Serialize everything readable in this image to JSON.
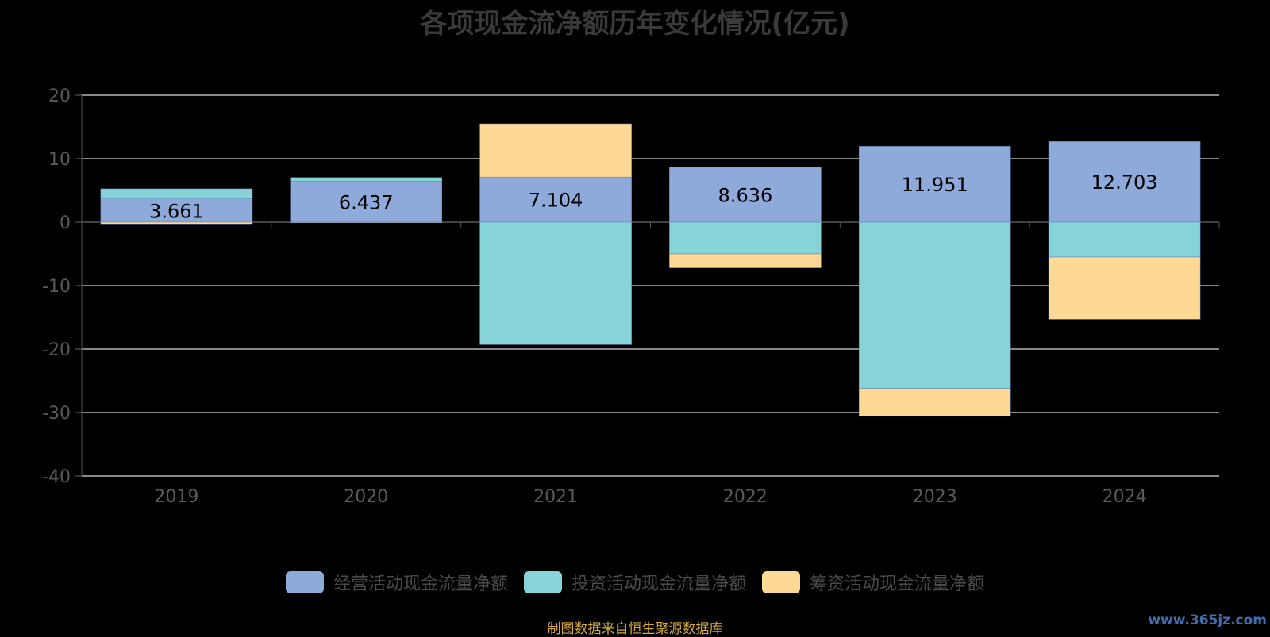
{
  "chart_data": {
    "type": "bar",
    "stacked": true,
    "title": "各项现金流净额历年变化情况(亿元)",
    "categories": [
      "2019",
      "2020",
      "2021",
      "2022",
      "2023",
      "2024"
    ],
    "ylim": [
      -40,
      20
    ],
    "yticks": [
      20,
      10,
      0,
      -10,
      -20,
      -30,
      -40
    ],
    "grid": true,
    "legend_position": "bottom",
    "series": [
      {
        "name": "经营活动现金流量净额",
        "color": "#8eaadb",
        "values": [
          3.661,
          6.437,
          7.104,
          8.636,
          11.951,
          12.703
        ]
      },
      {
        "name": "投资活动现金流量净额",
        "color": "#86d4d8",
        "values": [
          1.6,
          0.6,
          -19.3,
          -5.0,
          -26.2,
          -5.5
        ]
      },
      {
        "name": "筹资活动现金流量净额",
        "color": "#fed995",
        "values": [
          -0.4,
          -0.1,
          8.4,
          -2.2,
          -4.4,
          -9.8
        ]
      }
    ],
    "data_labels": [
      "3.661",
      "6.437",
      "7.104",
      "8.636",
      "11.951",
      "12.703"
    ]
  },
  "source_note": "制图数据来自恒生聚源数据库",
  "watermark": "www.365jz.com"
}
